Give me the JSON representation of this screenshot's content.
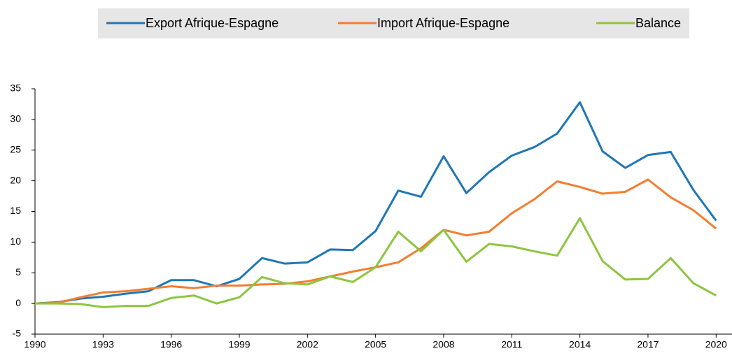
{
  "chart_data": {
    "type": "line",
    "x": [
      1990,
      1991,
      1992,
      1993,
      1994,
      1995,
      1996,
      1997,
      1998,
      1999,
      2000,
      2001,
      2002,
      2003,
      2004,
      2005,
      2006,
      2007,
      2008,
      2009,
      2010,
      2011,
      2012,
      2013,
      2014,
      2015,
      2016,
      2017,
      2018,
      2019,
      2020
    ],
    "series": [
      {
        "name": "Export Afrique-Espagne",
        "color": "#1f77b4",
        "values": [
          0,
          0.2,
          0.8,
          1.1,
          1.6,
          2.0,
          3.8,
          3.8,
          2.8,
          4.0,
          7.4,
          6.5,
          6.7,
          8.8,
          8.7,
          11.8,
          18.4,
          17.4,
          24.0,
          18.0,
          21.4,
          24.1,
          25.5,
          27.7,
          32.8,
          24.8,
          22.1,
          24.2,
          24.7,
          18.5,
          13.5
        ]
      },
      {
        "name": "Import Afrique-Espagne",
        "color": "#f47d30",
        "values": [
          0,
          0.1,
          1.0,
          1.8,
          2.0,
          2.4,
          2.8,
          2.5,
          2.9,
          2.9,
          3.1,
          3.2,
          3.6,
          4.4,
          5.2,
          5.9,
          6.7,
          9.0,
          12.0,
          11.1,
          11.7,
          14.7,
          17.0,
          19.9,
          19.0,
          17.9,
          18.2,
          20.2,
          17.3,
          15.2,
          12.2
        ]
      },
      {
        "name": "Balance",
        "color": "#8cc63f",
        "values": [
          0,
          0,
          -0.1,
          -0.6,
          -0.4,
          -0.4,
          0.9,
          1.3,
          0,
          1.0,
          4.3,
          3.3,
          3.1,
          4.4,
          3.5,
          5.9,
          11.7,
          8.5,
          12.0,
          6.8,
          9.7,
          9.3,
          8.5,
          7.8,
          13.9,
          6.9,
          3.9,
          4.0,
          7.4,
          3.3,
          1.3
        ]
      }
    ],
    "xlim": [
      1990,
      2020.7
    ],
    "xticks": [
      1990,
      1993,
      1996,
      1999,
      2002,
      2005,
      2008,
      2011,
      2014,
      2017,
      2020
    ],
    "ylim": [
      -5,
      35
    ],
    "yticks": [
      -5,
      0,
      5,
      10,
      15,
      20,
      25,
      30,
      35
    ],
    "legend": "top"
  }
}
